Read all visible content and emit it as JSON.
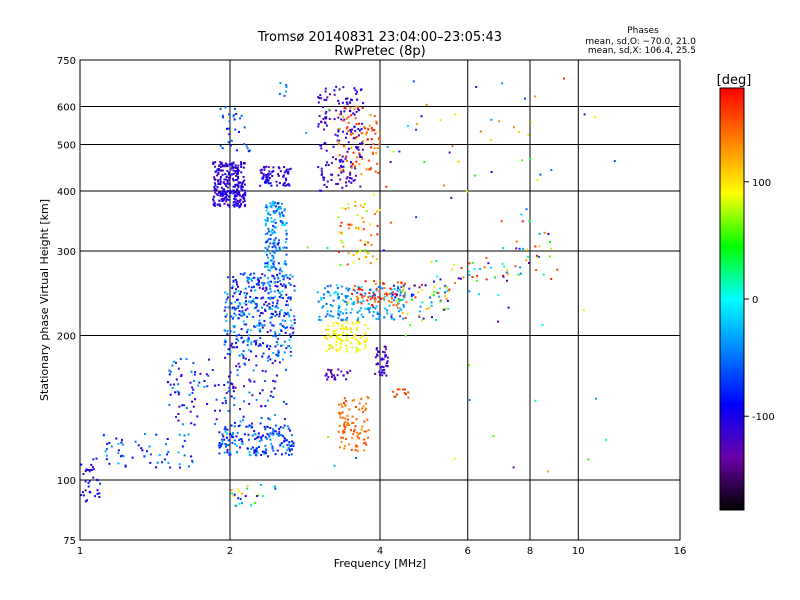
{
  "chart_data": {
    "type": "scatter",
    "title": "Tromsø 20140831 23:04:00–23:05:43",
    "subtitle": "RwPretec (8p)",
    "xlabel": "Frequency [MHz]",
    "ylabel": "Stationary phase Virtual Height [km]",
    "x_scale": "log",
    "y_scale": "log",
    "xlim": [
      1,
      16
    ],
    "ylim": [
      75,
      750
    ],
    "x_ticks": [
      1,
      2,
      4,
      6,
      8,
      10,
      16
    ],
    "y_ticks": [
      75,
      100,
      200,
      300,
      400,
      500,
      600,
      750
    ],
    "grid": true,
    "phase_stats": {
      "title": "Phases",
      "line1": "mean, sd,O: −70.0, 21.0",
      "line2": "mean, sd,X: 106.4, 25.5"
    },
    "colorbar": {
      "label": "[deg]",
      "range": [
        -180,
        180
      ],
      "ticks": [
        100,
        0,
        -100
      ],
      "colors": [
        "#000000",
        "#6a00a8",
        "#0000ff",
        "#0080ff",
        "#00ffff",
        "#00ff00",
        "#ffff00",
        "#ff8000",
        "#ff0000"
      ]
    },
    "clusters": [
      {
        "f": [
          0.97,
          1.1
        ],
        "h": [
          90,
          112
        ],
        "ph": [
          -120,
          -70
        ],
        "n": 45
      },
      {
        "f": [
          1.1,
          1.7
        ],
        "h": [
          105,
          125
        ],
        "ph": [
          -100,
          -20
        ],
        "n": 60
      },
      {
        "f": [
          1.5,
          2.6
        ],
        "h": [
          130,
          180
        ],
        "ph": [
          -130,
          -30
        ],
        "n": 150
      },
      {
        "f": [
          1.9,
          2.7
        ],
        "h": [
          112,
          130
        ],
        "ph": [
          -110,
          -20
        ],
        "n": 180
      },
      {
        "f": [
          1.95,
          2.7
        ],
        "h": [
          180,
          270
        ],
        "ph": [
          -120,
          -10
        ],
        "n": 380
      },
      {
        "f": [
          2.35,
          2.6
        ],
        "h": [
          270,
          380
        ],
        "ph": [
          -80,
          -10
        ],
        "n": 150
      },
      {
        "f": [
          1.85,
          2.15
        ],
        "h": [
          370,
          460
        ],
        "ph": [
          -130,
          -90
        ],
        "n": 260
      },
      {
        "f": [
          2.3,
          2.65
        ],
        "h": [
          410,
          450
        ],
        "ph": [
          -130,
          -80
        ],
        "n": 70
      },
      {
        "f": [
          1.9,
          2.2
        ],
        "h": [
          480,
          600
        ],
        "ph": [
          -100,
          -40
        ],
        "n": 30
      },
      {
        "f": [
          2.5,
          2.6
        ],
        "h": [
          630,
          690
        ],
        "ph": [
          -60,
          -20
        ],
        "n": 6
      },
      {
        "f": [
          2.0,
          2.5
        ],
        "h": [
          88,
          98
        ],
        "ph": [
          -120,
          120
        ],
        "n": 25
      },
      {
        "f": [
          3.0,
          3.7
        ],
        "h": [
          400,
          660
        ],
        "ph": [
          -130,
          -90
        ],
        "n": 170
      },
      {
        "f": [
          3.3,
          4.0
        ],
        "h": [
          430,
          600
        ],
        "ph": [
          120,
          180
        ],
        "n": 90
      },
      {
        "f": [
          3.3,
          4.0
        ],
        "h": [
          280,
          380
        ],
        "ph": [
          60,
          180
        ],
        "n": 60
      },
      {
        "f": [
          3.1,
          3.8
        ],
        "h": [
          185,
          215
        ],
        "ph": [
          80,
          110
        ],
        "n": 100
      },
      {
        "f": [
          3.0,
          4.5
        ],
        "h": [
          215,
          255
        ],
        "ph": [
          -60,
          -10
        ],
        "n": 160
      },
      {
        "f": [
          3.5,
          4.5
        ],
        "h": [
          230,
          260
        ],
        "ph": [
          130,
          180
        ],
        "n": 60
      },
      {
        "f": [
          3.3,
          3.8
        ],
        "h": [
          115,
          150
        ],
        "ph": [
          130,
          160
        ],
        "n": 90
      },
      {
        "f": [
          3.9,
          4.15
        ],
        "h": [
          165,
          190
        ],
        "ph": [
          -130,
          -100
        ],
        "n": 45
      },
      {
        "f": [
          3.1,
          3.5
        ],
        "h": [
          160,
          170
        ],
        "ph": [
          -140,
          -110
        ],
        "n": 25
      },
      {
        "f": [
          4.2,
          5.5
        ],
        "h": [
          215,
          255
        ],
        "ph": [
          -140,
          180
        ],
        "n": 70
      },
      {
        "f": [
          5.0,
          7.2
        ],
        "h": [
          240,
          290
        ],
        "ph": [
          -140,
          180
        ],
        "n": 35
      },
      {
        "f": [
          7.0,
          9.0
        ],
        "h": [
          260,
          330
        ],
        "ph": [
          -140,
          180
        ],
        "n": 30
      },
      {
        "f": [
          4.0,
          9.0
        ],
        "h": [
          340,
          680
        ],
        "ph": [
          -140,
          180
        ],
        "n": 40
      },
      {
        "f": [
          4.2,
          4.6
        ],
        "h": [
          148,
          155
        ],
        "ph": [
          140,
          170
        ],
        "n": 12
      },
      {
        "f": [
          2.8,
          12.0
        ],
        "h": [
          100,
          700
        ],
        "ph": [
          -140,
          180
        ],
        "n": 45
      }
    ]
  }
}
